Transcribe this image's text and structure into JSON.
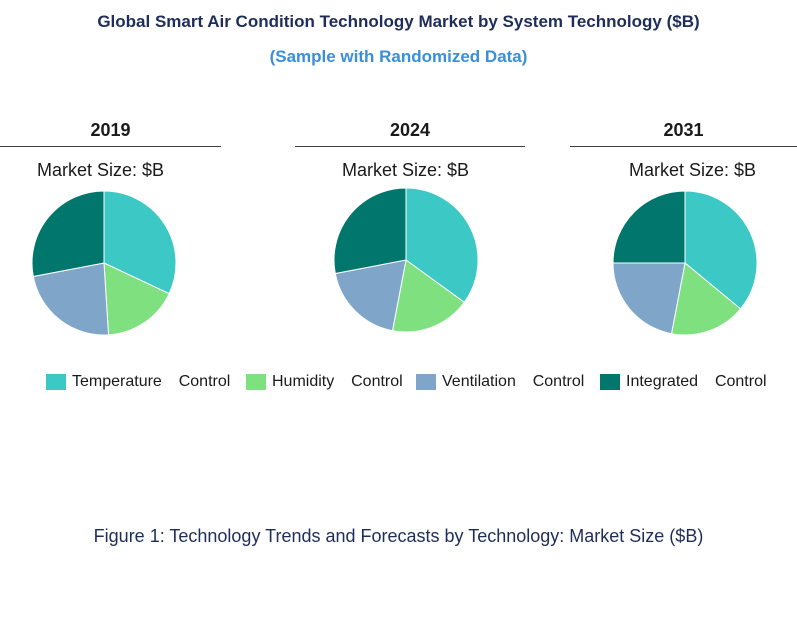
{
  "title": "Global Smart Air Condition Technology Market by System Technology ($B)",
  "subtitle": "(Sample with Randomized Data)",
  "market_size_label": "Market Size: $B",
  "caption": "Figure 1: Technology Trends and Forecasts by Technology: Market Size ($B)",
  "colors": {
    "Temperature Control": "#3cc8c4",
    "Humidity Control": "#7ee07e",
    "Ventilation Control": "#7fa6c9",
    "Integrated Control": "#00766c"
  },
  "legend": [
    {
      "label": "Temperature  Control",
      "series": "Temperature Control"
    },
    {
      "label": "Humidity  Control",
      "series": "Humidity Control"
    },
    {
      "label": "Ventilation  Control",
      "series": "Ventilation Control"
    },
    {
      "label": "Integrated  Control",
      "series": "Integrated Control"
    }
  ],
  "chart_data": [
    {
      "type": "pie",
      "title": "2019",
      "subtitle": "Market Size: $B",
      "categories": [
        "Temperature Control",
        "Humidity Control",
        "Ventilation Control",
        "Integrated Control"
      ],
      "values": [
        32,
        17,
        23,
        28
      ]
    },
    {
      "type": "pie",
      "title": "2024",
      "subtitle": "Market Size: $B",
      "categories": [
        "Temperature Control",
        "Humidity Control",
        "Ventilation Control",
        "Integrated Control"
      ],
      "values": [
        35,
        18,
        19,
        28
      ]
    },
    {
      "type": "pie",
      "title": "2031",
      "subtitle": "Market Size: $B",
      "categories": [
        "Temperature Control",
        "Humidity Control",
        "Ventilation Control",
        "Integrated Control"
      ],
      "values": [
        36,
        17,
        22,
        25
      ]
    }
  ]
}
